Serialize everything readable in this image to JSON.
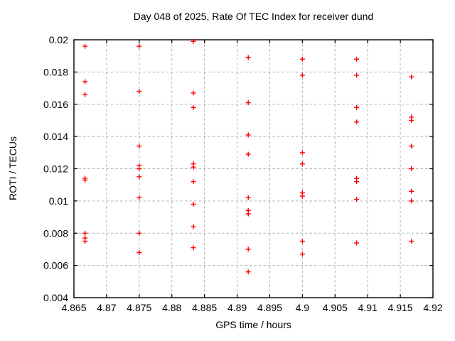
{
  "colors": {
    "marker": "#ff0000",
    "grid": "#b3b3b3",
    "axis": "#000000",
    "background": "#ffffff"
  },
  "chart_data": {
    "type": "scatter",
    "title": "Day 048 of 2025, Rate Of TEC Index for receiver dund",
    "xlabel": "GPS time / hours",
    "ylabel": "ROTI / TECUs",
    "xlim": [
      4.865,
      4.92
    ],
    "ylim": [
      0.004,
      0.02
    ],
    "grid": true,
    "legend": "none",
    "marker": "plus",
    "xtick_values": [
      4.865,
      4.87,
      4.875,
      4.88,
      4.885,
      4.89,
      4.895,
      4.9,
      4.905,
      4.91,
      4.915,
      4.92
    ],
    "xtick_labels": [
      "4.865",
      "4.87",
      "4.875",
      "4.88",
      "4.885",
      "4.89",
      "4.895",
      "4.9",
      "4.905",
      "4.91",
      "4.915",
      "4.92"
    ],
    "ytick_values": [
      0.004,
      0.006,
      0.008,
      0.01,
      0.012,
      0.014,
      0.016,
      0.018,
      0.02
    ],
    "ytick_labels": [
      "0.004",
      "0.006",
      "0.008",
      "0.01",
      "0.012",
      "0.014",
      "0.016",
      "0.018",
      "0.02"
    ],
    "series": [
      {
        "name": "ROTI",
        "points": [
          [
            4.8667,
            0.0196
          ],
          [
            4.8667,
            0.0174
          ],
          [
            4.8667,
            0.0166
          ],
          [
            4.8667,
            0.0114
          ],
          [
            4.8667,
            0.0113
          ],
          [
            4.8667,
            0.008
          ],
          [
            4.8667,
            0.0077
          ],
          [
            4.8667,
            0.0075
          ],
          [
            4.875,
            0.0196
          ],
          [
            4.875,
            0.0168
          ],
          [
            4.875,
            0.0134
          ],
          [
            4.875,
            0.0122
          ],
          [
            4.875,
            0.012
          ],
          [
            4.875,
            0.0115
          ],
          [
            4.875,
            0.0102
          ],
          [
            4.875,
            0.008
          ],
          [
            4.875,
            0.0068
          ],
          [
            4.8833,
            0.0199
          ],
          [
            4.8833,
            0.0167
          ],
          [
            4.8833,
            0.0158
          ],
          [
            4.8833,
            0.0123
          ],
          [
            4.8833,
            0.0121
          ],
          [
            4.8833,
            0.0112
          ],
          [
            4.8833,
            0.0098
          ],
          [
            4.8833,
            0.0084
          ],
          [
            4.8833,
            0.0071
          ],
          [
            4.8917,
            0.0189
          ],
          [
            4.8917,
            0.0161
          ],
          [
            4.8917,
            0.0141
          ],
          [
            4.8917,
            0.0129
          ],
          [
            4.8917,
            0.0102
          ],
          [
            4.8917,
            0.0094
          ],
          [
            4.8917,
            0.0092
          ],
          [
            4.8917,
            0.007
          ],
          [
            4.8917,
            0.0056
          ],
          [
            4.9,
            0.0188
          ],
          [
            4.9,
            0.0178
          ],
          [
            4.9,
            0.013
          ],
          [
            4.9,
            0.0123
          ],
          [
            4.9,
            0.0105
          ],
          [
            4.9,
            0.0103
          ],
          [
            4.9,
            0.0075
          ],
          [
            4.9,
            0.0067
          ],
          [
            4.9083,
            0.0188
          ],
          [
            4.9083,
            0.0178
          ],
          [
            4.9083,
            0.0158
          ],
          [
            4.9083,
            0.0149
          ],
          [
            4.9083,
            0.0114
          ],
          [
            4.9083,
            0.0112
          ],
          [
            4.9083,
            0.0101
          ],
          [
            4.9083,
            0.0074
          ],
          [
            4.9167,
            0.0177
          ],
          [
            4.9167,
            0.0152
          ],
          [
            4.9167,
            0.015
          ],
          [
            4.9167,
            0.0134
          ],
          [
            4.9167,
            0.012
          ],
          [
            4.9167,
            0.0106
          ],
          [
            4.9167,
            0.01
          ],
          [
            4.9167,
            0.0075
          ]
        ]
      }
    ]
  }
}
